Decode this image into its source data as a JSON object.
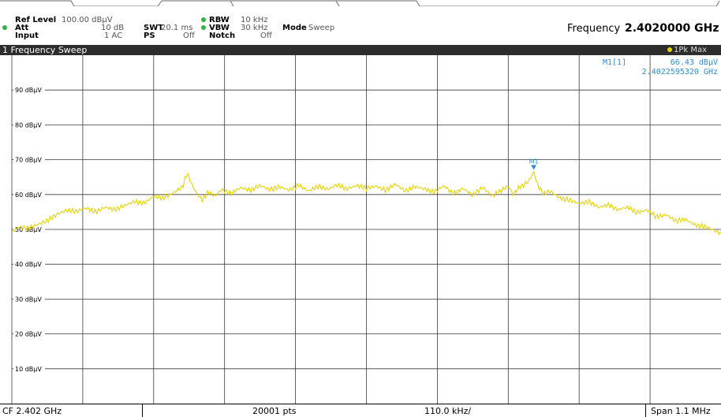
{
  "header": {
    "ref_level_label": "Ref Level",
    "ref_level_value": "100.00 dBµV",
    "att_label": "Att",
    "att_value": "10 dB",
    "swt_label": "SWT",
    "swt_value": "20.1 ms",
    "input_label": "Input",
    "input_value": "1 AC",
    "ps_label": "PS",
    "ps_value": "Off",
    "rbw_label": "RBW",
    "rbw_value": "10 kHz",
    "vbw_label": "VBW",
    "vbw_value": "30 kHz",
    "notch_label": "Notch",
    "notch_value": "Off",
    "mode_label": "Mode",
    "mode_value": "Sweep",
    "frequency_label": "Frequency",
    "frequency_value": "2.4020000 GHz",
    "indicator_color": "#33b24a"
  },
  "window": {
    "title": "1 Frequency Sweep",
    "trace_label": "1Pk Max",
    "trace_color": "#e8d300"
  },
  "marker": {
    "name": "M1",
    "label": "M1[1]",
    "level": "66.43 dBµV",
    "frequency": "2.4022595320 GHz",
    "color": "#2f8bd6",
    "level_dbuv": 66.43,
    "frequency_offset_khz": 259.532
  },
  "chart_data": {
    "type": "line",
    "title": "",
    "xlabel": "",
    "ylabel": "",
    "y_unit": "dBµV",
    "ylim": [
      0,
      100
    ],
    "y_ticks": [
      10,
      20,
      30,
      40,
      50,
      60,
      70,
      80,
      90
    ],
    "y_tick_labels": [
      "10 dBµV",
      "20 dBµV",
      "30 dBµV",
      "40 dBµV",
      "50 dBµV",
      "60 dBµV",
      "70 dBµV",
      "80 dBµV",
      "90 dBµV"
    ],
    "xlim_khz": [
      -550,
      550
    ],
    "x_div_khz": 110,
    "grid": true,
    "series": [
      {
        "color": "#e8d300",
        "x_khz": [
          -550,
          -540,
          -525,
          -510,
          -495,
          -480,
          -465,
          -450,
          -435,
          -420,
          -405,
          -390,
          -375,
          -360,
          -345,
          -330,
          -315,
          -300,
          -285,
          -278,
          -270,
          -262,
          -255,
          -245,
          -235,
          -225,
          -210,
          -195,
          -180,
          -165,
          -150,
          -135,
          -120,
          -105,
          -90,
          -75,
          -60,
          -45,
          -30,
          -15,
          0,
          15,
          30,
          45,
          60,
          75,
          90,
          105,
          120,
          135,
          150,
          165,
          180,
          195,
          210,
          220,
          228,
          236,
          245,
          252,
          259.5,
          266,
          275,
          285,
          300,
          315,
          330,
          345,
          360,
          375,
          390,
          405,
          420,
          435,
          450,
          465,
          480,
          495,
          510,
          525,
          540,
          550
        ],
        "y_dbuv": [
          49.2,
          50.6,
          50.3,
          51.4,
          52.5,
          54.3,
          55.5,
          55.2,
          56.1,
          55.0,
          56.4,
          55.6,
          56.9,
          58.0,
          57.5,
          59.5,
          59.0,
          60.4,
          62.3,
          66.2,
          62.5,
          60.0,
          58.4,
          60.8,
          59.5,
          61.4,
          60.3,
          62.0,
          61.2,
          62.6,
          61.4,
          62.2,
          61.3,
          62.7,
          61.0,
          62.4,
          61.5,
          62.8,
          61.6,
          62.6,
          61.8,
          62.4,
          61.2,
          63.0,
          61.0,
          62.3,
          61.6,
          60.7,
          62.5,
          60.2,
          61.8,
          59.8,
          62.1,
          59.6,
          61.3,
          62.4,
          60.0,
          62.0,
          62.8,
          64.0,
          66.4,
          62.5,
          60.1,
          61.0,
          59.0,
          58.4,
          57.4,
          58.0,
          56.3,
          57.1,
          55.6,
          56.4,
          54.8,
          55.6,
          53.6,
          54.2,
          52.4,
          52.9,
          51.2,
          50.8,
          49.6,
          48.8
        ]
      }
    ]
  },
  "footer": {
    "center_frequency": "CF 2.402 GHz",
    "points": "20001 pts",
    "per_division": "110.0 kHz/",
    "span": "Span 1.1 MHz"
  }
}
